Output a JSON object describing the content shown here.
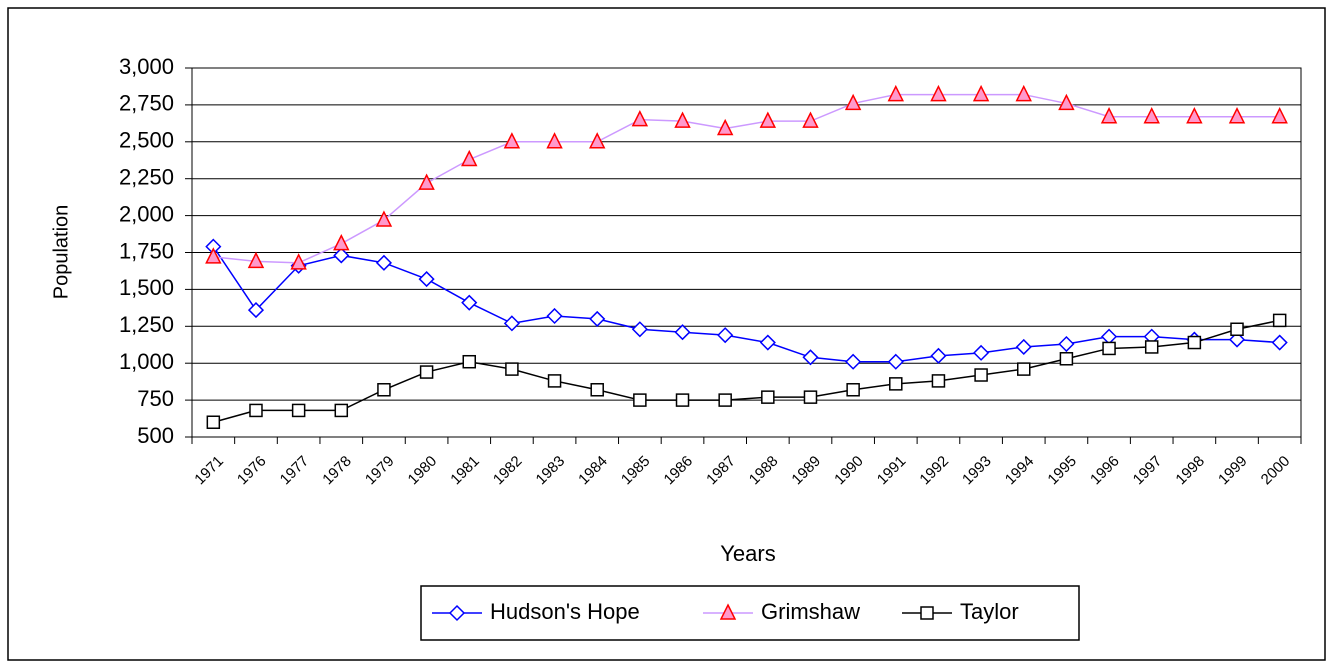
{
  "chart_data": {
    "type": "line",
    "y_label": "Population",
    "x_label": "Years",
    "categories": [
      "1971",
      "1976",
      "1977",
      "1978",
      "1979",
      "1980",
      "1981",
      "1982",
      "1983",
      "1984",
      "1985",
      "1986",
      "1987",
      "1988",
      "1989",
      "1990",
      "1991",
      "1992",
      "1993",
      "1994",
      "1995",
      "1996",
      "1997",
      "1998",
      "1999",
      "2000"
    ],
    "series": [
      {
        "name": "Hudson's Hope",
        "color": "#0000ff",
        "marker": "diamond",
        "marker_fill": "#ffffff",
        "values": [
          1790,
          1360,
          1660,
          1730,
          1680,
          1570,
          1410,
          1270,
          1320,
          1300,
          1230,
          1210,
          1190,
          1140,
          1040,
          1010,
          1010,
          1050,
          1070,
          1110,
          1130,
          1180,
          1180,
          1160,
          1160,
          1140
        ]
      },
      {
        "name": "Grimshaw",
        "color": "#cc99ff",
        "marker": "triangle",
        "marker_fill": "#ff99cc",
        "marker_stroke": "#ff0000",
        "values": [
          1720,
          1690,
          1680,
          1810,
          1970,
          2220,
          2380,
          2500,
          2500,
          2500,
          2650,
          2640,
          2590,
          2640,
          2640,
          2760,
          2820,
          2820,
          2820,
          2820,
          2760,
          2670,
          2670,
          2670,
          2670,
          2670
        ]
      },
      {
        "name": "Taylor",
        "color": "#000000",
        "marker": "square",
        "marker_fill": "#ffffff",
        "values": [
          600,
          680,
          680,
          680,
          820,
          940,
          1010,
          960,
          880,
          820,
          750,
          750,
          750,
          770,
          770,
          820,
          860,
          880,
          920,
          960,
          1030,
          1100,
          1110,
          1140,
          1230,
          1290
        ]
      }
    ],
    "ylim": [
      500,
      3000
    ],
    "yticks": [
      500,
      750,
      {
        "value": 1000,
        "label": "1,000"
      },
      {
        "value": 1250,
        "label": "1,250"
      },
      {
        "value": 1500,
        "label": "1,500"
      },
      {
        "value": 1750,
        "label": "1,750"
      },
      {
        "value": 2000,
        "label": "2,000"
      },
      {
        "value": 2250,
        "label": "2,250"
      },
      {
        "value": 2500,
        "label": "2,500"
      },
      {
        "value": 2750,
        "label": "2,750"
      },
      {
        "value": 3000,
        "label": "3,000"
      }
    ],
    "grid": true,
    "legend": "bottom"
  }
}
